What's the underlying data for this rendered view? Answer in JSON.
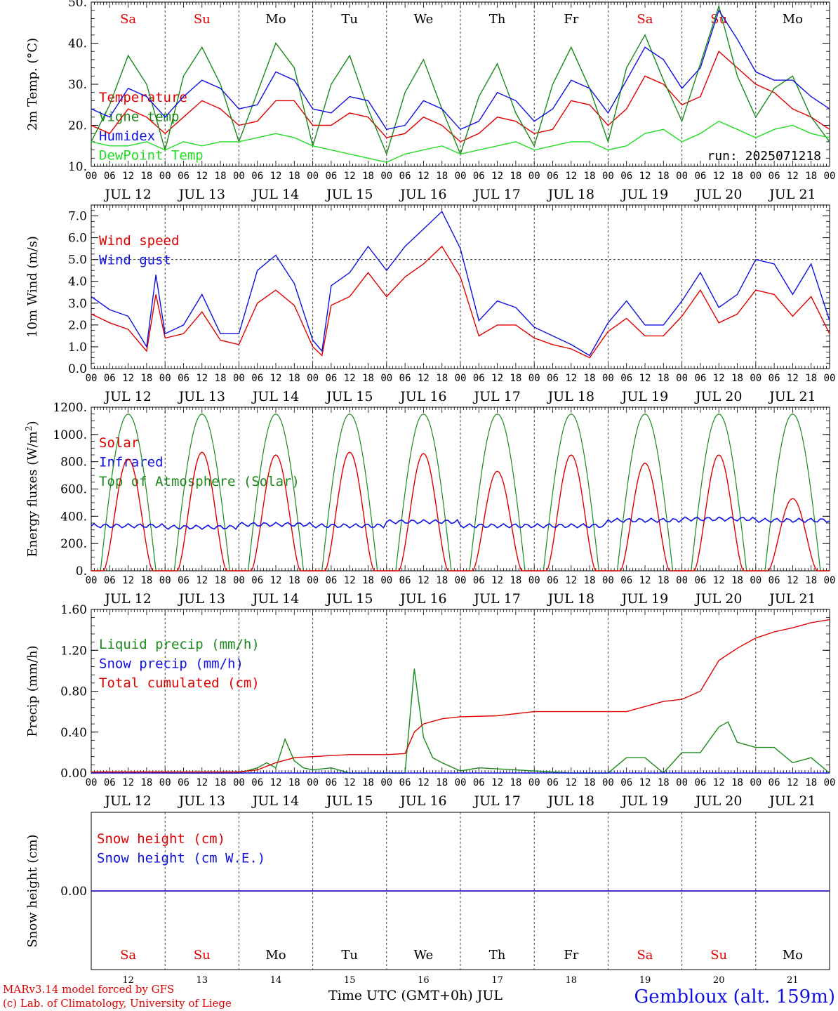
{
  "run_label": "run: 2025071218",
  "footer": {
    "credit1": "MARv3.14 model forced by GFS",
    "credit2": "(c) Lab. of Climatology, University of Liege",
    "axis_title": "Time UTC (GMT+0h) JUL",
    "station": "Gembloux (alt. 159m)"
  },
  "day_names": [
    "Sa",
    "Su",
    "Mo",
    "Tu",
    "We",
    "Th",
    "Fr",
    "Sa",
    "Su",
    "Mo"
  ],
  "day_dates": [
    "JUL 12",
    "JUL 13",
    "JUL 14",
    "JUL 15",
    "JUL 16",
    "JUL 17",
    "JUL 18",
    "JUL 19",
    "JUL 20",
    "JUL 21"
  ],
  "day_numbers": [
    "12",
    "13",
    "14",
    "15",
    "16",
    "17",
    "18",
    "19",
    "20",
    "21"
  ],
  "hour_ticks": [
    "00",
    "06",
    "12",
    "18"
  ],
  "last_hour_tick": "00",
  "colors": {
    "weekend": "#e00000",
    "weekday": "#000000",
    "red": "#e00000",
    "green": "#1a8a1a",
    "blue": "#1010e0",
    "lightgreen": "#22dd22"
  },
  "chart_data": [
    {
      "type": "line",
      "ylabel": "2m Temp. (°C)",
      "ylim": [
        10,
        50
      ],
      "yticks": [
        "10.",
        "20.",
        "30.",
        "40.",
        "50."
      ],
      "x_unit": "hours since JUL 12 00 UTC",
      "legend": [
        "Temperature",
        "Vigne temp",
        "Humidex",
        "DewPoint Temp"
      ],
      "series": [
        {
          "name": "Temperature",
          "color": "red",
          "x": [
            0,
            6,
            12,
            18,
            24,
            30,
            36,
            42,
            48,
            54,
            60,
            66,
            72,
            78,
            84,
            90,
            96,
            102,
            108,
            114,
            120,
            126,
            132,
            138,
            144,
            150,
            156,
            162,
            168,
            174,
            180,
            186,
            192,
            198,
            204,
            210,
            216,
            222,
            228,
            234,
            240
          ],
          "y": [
            20,
            18,
            24,
            22,
            18,
            22,
            26,
            24,
            20,
            21,
            26,
            26,
            20,
            20,
            23,
            22,
            17,
            18,
            22,
            20,
            16,
            18,
            22,
            21,
            18,
            19,
            26,
            25,
            20,
            24,
            32,
            30,
            25,
            27,
            38,
            34,
            30,
            28,
            24,
            22,
            19
          ]
        },
        {
          "name": "Vigne temp",
          "color": "green",
          "x": [
            0,
            6,
            12,
            18,
            24,
            30,
            36,
            42,
            48,
            54,
            60,
            66,
            72,
            78,
            84,
            90,
            96,
            102,
            108,
            114,
            120,
            126,
            132,
            138,
            144,
            150,
            156,
            162,
            168,
            174,
            180,
            186,
            192,
            198,
            204,
            210,
            216,
            222,
            228,
            234,
            240
          ],
          "y": [
            16,
            25,
            37,
            30,
            14,
            32,
            39,
            30,
            16,
            28,
            40,
            34,
            15,
            30,
            37,
            24,
            13,
            28,
            36,
            24,
            13,
            27,
            35,
            23,
            15,
            30,
            39,
            29,
            16,
            34,
            42,
            31,
            21,
            35,
            49,
            32,
            22,
            29,
            32,
            22,
            16
          ]
        },
        {
          "name": "Humidex",
          "color": "blue",
          "x": [
            0,
            6,
            12,
            18,
            24,
            30,
            36,
            42,
            48,
            54,
            60,
            66,
            72,
            78,
            84,
            90,
            96,
            102,
            108,
            114,
            120,
            126,
            132,
            138,
            144,
            150,
            156,
            162,
            168,
            174,
            180,
            186,
            192,
            198,
            204,
            210,
            216,
            222,
            228,
            234,
            240
          ],
          "y": [
            24,
            22,
            29,
            27,
            22,
            27,
            31,
            29,
            24,
            25,
            33,
            31,
            24,
            23,
            27,
            26,
            19,
            20,
            26,
            24,
            19,
            21,
            28,
            26,
            21,
            24,
            31,
            29,
            23,
            31,
            39,
            36,
            29,
            34,
            48,
            41,
            33,
            31,
            31,
            27,
            24
          ]
        },
        {
          "name": "DewPoint Temp",
          "color": "lightgreen",
          "x": [
            0,
            6,
            12,
            18,
            24,
            30,
            36,
            42,
            48,
            54,
            60,
            66,
            72,
            78,
            84,
            90,
            96,
            102,
            108,
            114,
            120,
            126,
            132,
            138,
            144,
            150,
            156,
            162,
            168,
            174,
            180,
            186,
            192,
            198,
            204,
            210,
            216,
            222,
            228,
            234,
            240
          ],
          "y": [
            16,
            15,
            15,
            16,
            14,
            16,
            15,
            16,
            16,
            17,
            18,
            17,
            15,
            14,
            13,
            12,
            11,
            13,
            14,
            15,
            13,
            14,
            15,
            16,
            14,
            15,
            16,
            16,
            14,
            15,
            18,
            19,
            16,
            18,
            21,
            19,
            17,
            19,
            20,
            18,
            17
          ]
        }
      ]
    },
    {
      "type": "line",
      "ylabel": "10m Wind (m/s)",
      "ylim": [
        0,
        7.5
      ],
      "yticks": [
        "0.0",
        "1.0",
        "2.0",
        "3.0",
        "4.0",
        "5.0",
        "6.0",
        "7.0"
      ],
      "x_unit": "hours since JUL 12 00 UTC",
      "reference_line": 5.0,
      "legend": [
        "Wind speed",
        "Wind gust"
      ],
      "series": [
        {
          "name": "Wind speed",
          "color": "red",
          "x": [
            0,
            6,
            12,
            18,
            21,
            24,
            30,
            36,
            42,
            48,
            54,
            60,
            66,
            72,
            75,
            78,
            84,
            90,
            96,
            102,
            108,
            114,
            120,
            126,
            132,
            138,
            144,
            150,
            156,
            162,
            168,
            174,
            180,
            186,
            192,
            198,
            204,
            210,
            216,
            222,
            228,
            234,
            240
          ],
          "y": [
            2.5,
            2.1,
            1.8,
            0.8,
            3.4,
            1.4,
            1.6,
            2.6,
            1.3,
            1.1,
            3.0,
            3.6,
            2.9,
            1.0,
            0.6,
            2.9,
            3.3,
            4.4,
            3.3,
            4.2,
            4.8,
            5.6,
            4.2,
            1.5,
            2.0,
            2.0,
            1.4,
            1.1,
            0.9,
            0.5,
            1.7,
            2.3,
            1.5,
            1.5,
            2.4,
            3.6,
            2.1,
            2.5,
            3.6,
            3.4,
            2.4,
            3.3,
            1.6
          ]
        },
        {
          "name": "Wind gust",
          "color": "blue",
          "x": [
            0,
            6,
            12,
            18,
            21,
            24,
            30,
            36,
            42,
            48,
            54,
            60,
            66,
            72,
            75,
            78,
            84,
            90,
            96,
            102,
            108,
            114,
            120,
            126,
            132,
            138,
            144,
            150,
            156,
            162,
            168,
            174,
            180,
            186,
            192,
            198,
            204,
            210,
            216,
            222,
            228,
            234,
            240
          ],
          "y": [
            3.3,
            2.7,
            2.4,
            1.0,
            4.3,
            1.6,
            2.0,
            3.4,
            1.6,
            1.6,
            4.5,
            5.2,
            3.9,
            1.3,
            0.8,
            3.8,
            4.4,
            5.6,
            4.5,
            5.6,
            6.4,
            7.2,
            5.5,
            2.2,
            3.1,
            2.8,
            1.9,
            1.5,
            1.1,
            0.6,
            2.1,
            3.1,
            2.0,
            2.0,
            3.1,
            4.4,
            2.8,
            3.4,
            5.0,
            4.8,
            3.4,
            4.8,
            2.2
          ]
        }
      ]
    },
    {
      "type": "line",
      "ylabel": "Energy fluxes (W/m²)",
      "ylim": [
        0,
        1200
      ],
      "yticks": [
        "0.",
        "200.",
        "400.",
        "600.",
        "800.",
        "1000.",
        "1200."
      ],
      "x_unit": "hours since JUL 12 00 UTC",
      "legend": [
        "Solar",
        "Infrared",
        "Top of Atmosphere (Solar)"
      ],
      "toa_peak": 1150,
      "solar_daily_peaks": [
        820,
        870,
        850,
        870,
        860,
        730,
        850,
        790,
        850,
        530
      ],
      "infrared_level": [
        330,
        320,
        340,
        330,
        360,
        330,
        330,
        370,
        380,
        370
      ],
      "series_names": [
        {
          "name": "Solar",
          "color": "red"
        },
        {
          "name": "Infrared",
          "color": "blue"
        },
        {
          "name": "Top of Atmosphere (Solar)",
          "color": "green"
        }
      ]
    },
    {
      "type": "line",
      "ylabel": "Precip (mm/h)",
      "ylim": [
        0,
        1.6
      ],
      "yticks": [
        "0.00",
        "0.40",
        "0.80",
        "1.20",
        "1.60"
      ],
      "x_unit": "hours since JUL 12 00 UTC",
      "legend": [
        "Liquid precip (mm/h)",
        "Snow precip (mm/h)",
        "Total cumulated (cm)"
      ],
      "series": [
        {
          "name": "Liquid precip (mm/h)",
          "color": "green",
          "x": [
            0,
            18,
            24,
            48,
            54,
            57,
            60,
            63,
            66,
            69,
            72,
            78,
            84,
            90,
            96,
            102,
            105,
            108,
            111,
            114,
            120,
            126,
            138,
            156,
            168,
            174,
            180,
            186,
            192,
            198,
            204,
            207,
            210,
            216,
            222,
            228,
            234,
            240
          ],
          "y": [
            0,
            0.01,
            0,
            0,
            0.05,
            0.1,
            0.05,
            0.33,
            0.12,
            0.05,
            0.03,
            0.05,
            0,
            0,
            0,
            0,
            1.02,
            0.35,
            0.15,
            0.1,
            0.02,
            0.05,
            0.03,
            0,
            0,
            0.15,
            0.15,
            0,
            0.2,
            0.2,
            0.45,
            0.5,
            0.3,
            0.25,
            0.25,
            0.1,
            0.15,
            0
          ]
        },
        {
          "name": "Snow precip (mm/h)",
          "color": "blue",
          "x": [
            0,
            240
          ],
          "y": [
            0,
            0
          ]
        },
        {
          "name": "Total cumulated (cm)",
          "color": "red",
          "x": [
            0,
            48,
            54,
            60,
            66,
            72,
            78,
            84,
            96,
            102,
            105,
            108,
            114,
            120,
            132,
            144,
            156,
            168,
            174,
            180,
            186,
            192,
            198,
            204,
            210,
            216,
            222,
            228,
            234,
            240
          ],
          "y": [
            0.01,
            0.01,
            0.03,
            0.1,
            0.15,
            0.16,
            0.17,
            0.18,
            0.18,
            0.19,
            0.4,
            0.48,
            0.53,
            0.55,
            0.56,
            0.6,
            0.6,
            0.6,
            0.6,
            0.65,
            0.7,
            0.72,
            0.8,
            1.1,
            1.22,
            1.32,
            1.38,
            1.42,
            1.47,
            1.5
          ]
        }
      ]
    },
    {
      "type": "line",
      "ylabel": "Snow height (cm)",
      "ylim": [
        -1,
        1
      ],
      "yticks": [
        "0.00"
      ],
      "x_unit": "hours since JUL 12 00 UTC",
      "legend": [
        "Snow height (cm)",
        "Snow height (cm W.E.)"
      ],
      "series": [
        {
          "name": "Snow height (cm)",
          "color": "red",
          "x": [
            0,
            240
          ],
          "y": [
            0,
            0
          ]
        },
        {
          "name": "Snow height (cm W.E.)",
          "color": "blue",
          "x": [
            0,
            240
          ],
          "y": [
            0,
            0
          ]
        }
      ]
    }
  ]
}
